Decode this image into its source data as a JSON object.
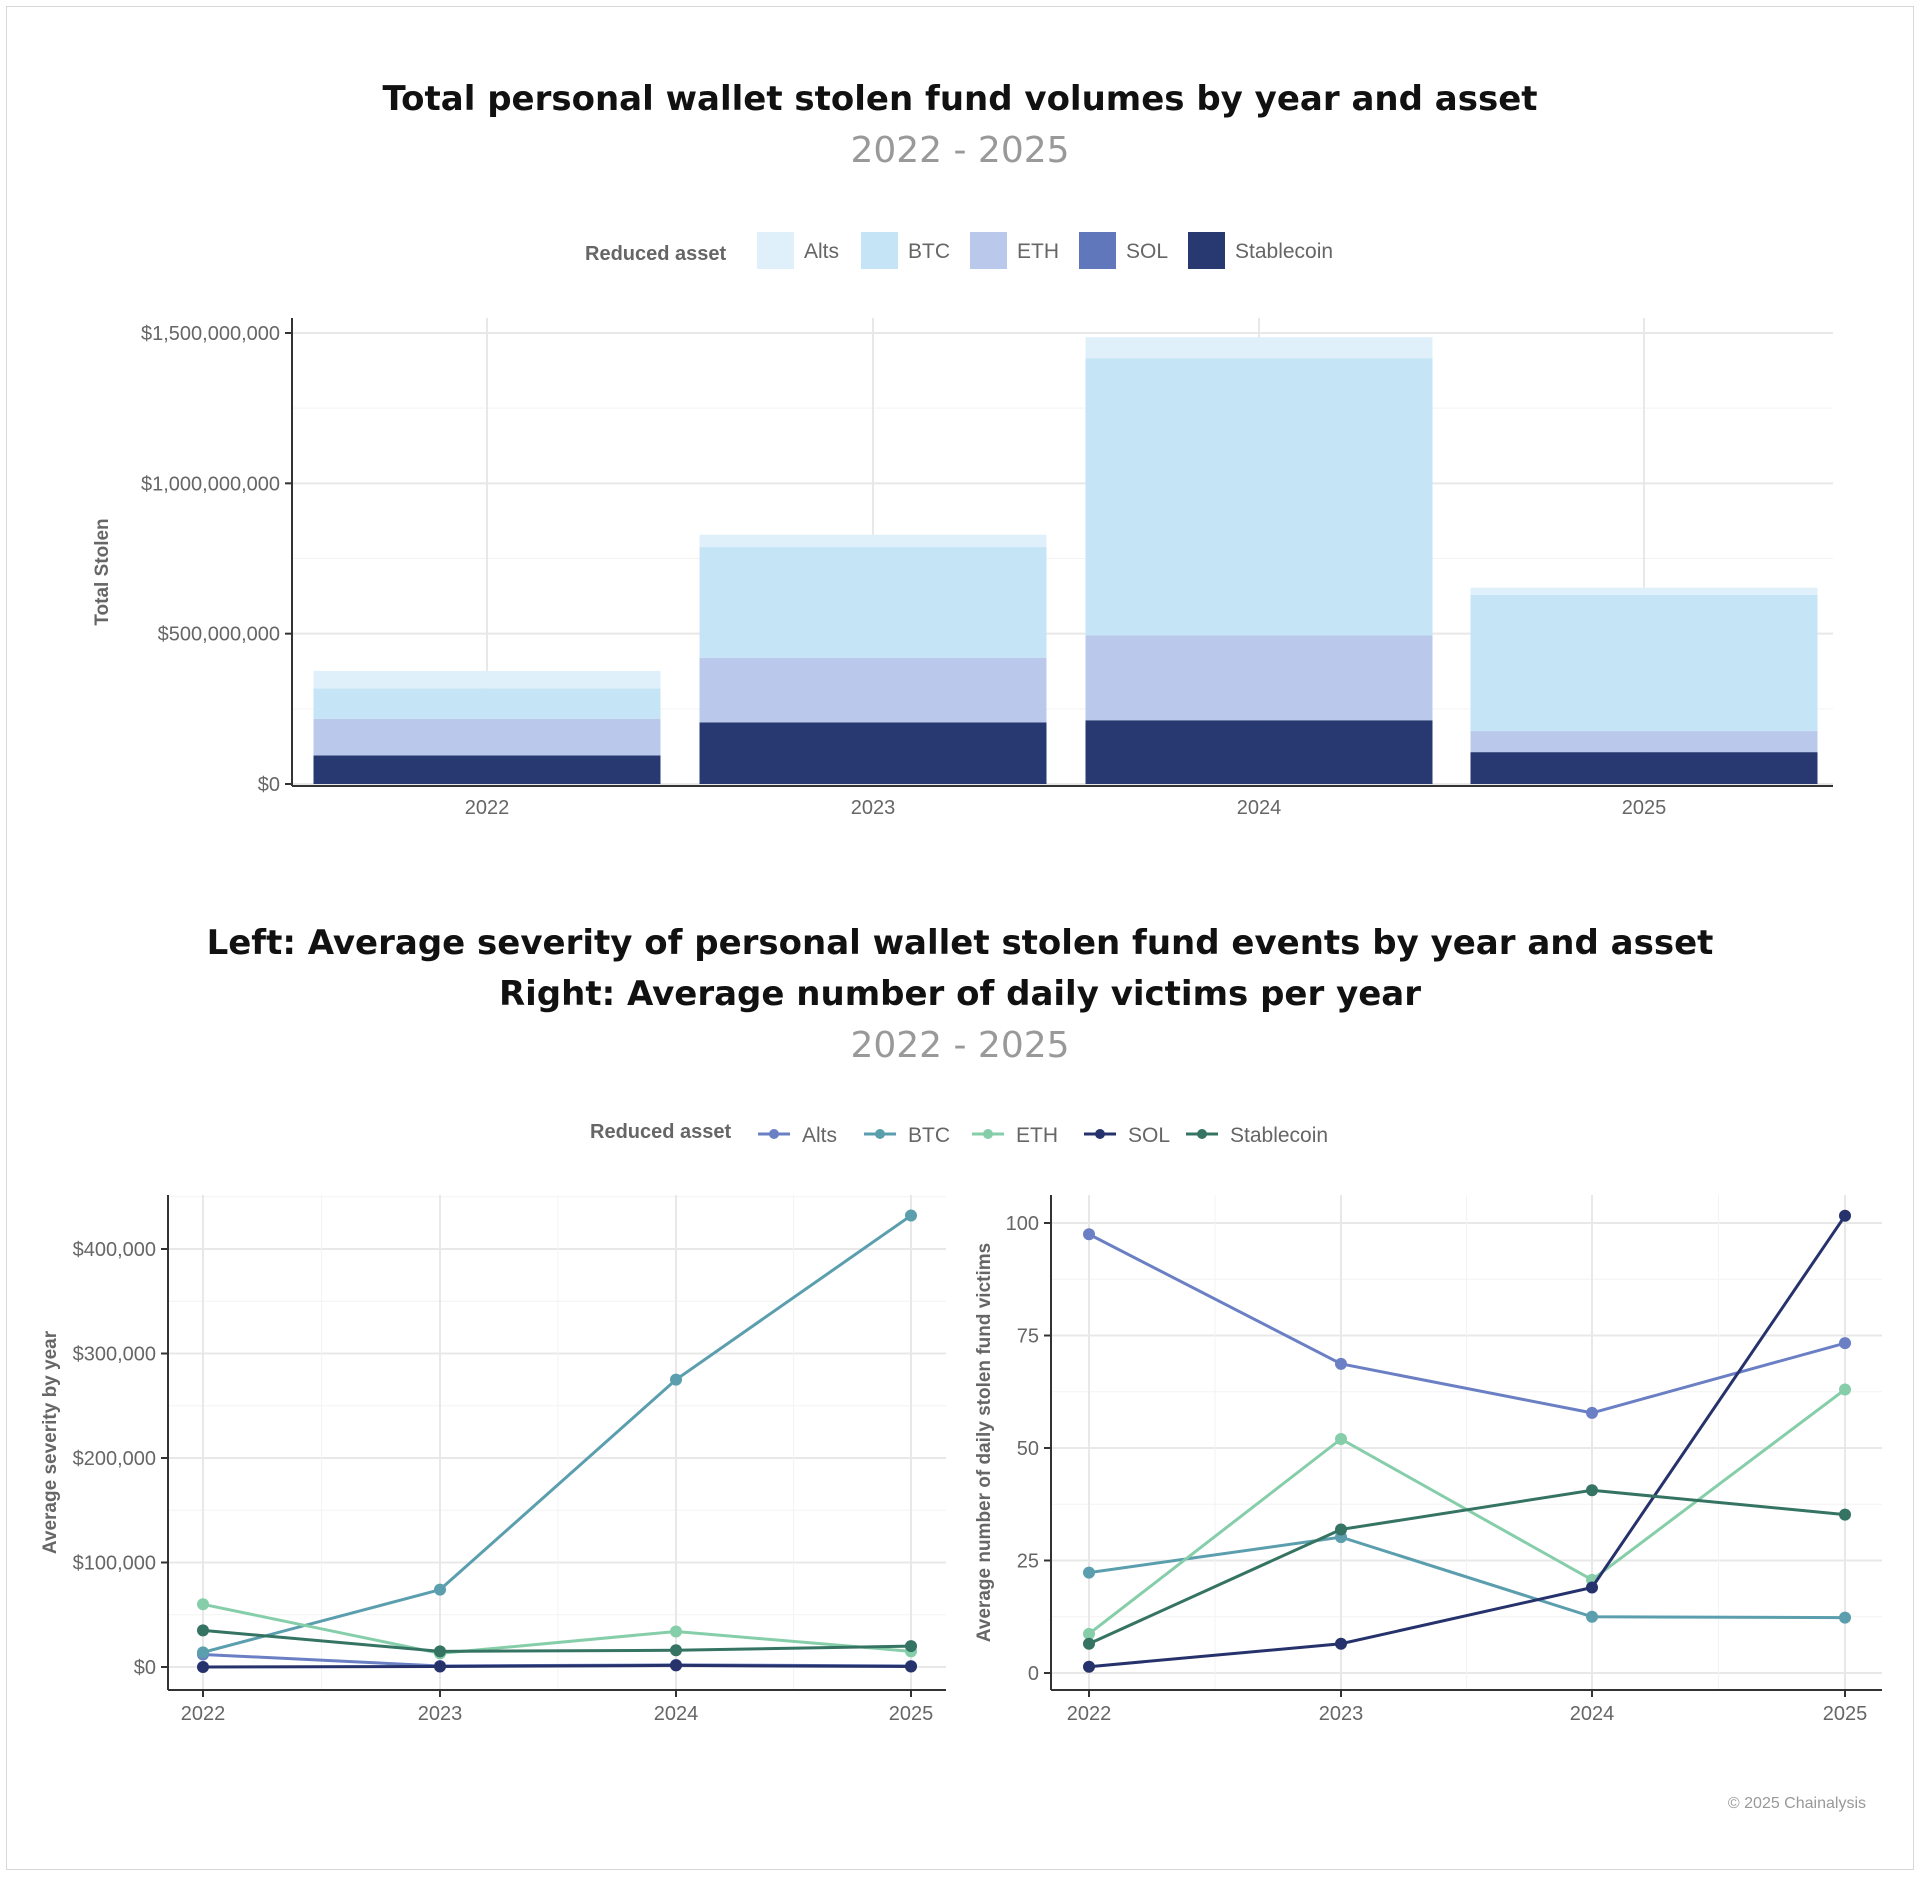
{
  "colors": {
    "Alts": "#dff0fa",
    "BTC": "#c5e5f6",
    "ETH": "#bac8ec",
    "SOL": "#6077bb",
    "Stablecoin": "#283870"
  },
  "line_colors": {
    "Alts": "#6b7fc4",
    "BTC": "#5b9ead",
    "ETH": "#86ceaa",
    "SOL": "#26326b",
    "Stablecoin": "#357362"
  },
  "copyright": "© 2025 Chainalysis",
  "chart_data": [
    {
      "type": "bar",
      "stacked": true,
      "title": "Total personal wallet stolen fund volumes by year and asset",
      "subtitle": "2022 - 2025",
      "legend_title": "Reduced asset",
      "legend_position": "top",
      "xlabel": "",
      "ylabel": "Total Stolen",
      "categories": [
        "2022",
        "2023",
        "2024",
        "2025"
      ],
      "ylim": [
        0,
        1500000000
      ],
      "yticks": [
        0,
        500000000,
        1000000000,
        1500000000
      ],
      "ytick_labels": [
        "$0",
        "$500,000,000",
        "$1,000,000,000",
        "$1,500,000,000"
      ],
      "grid": true,
      "series": [
        {
          "name": "Stablecoin",
          "values": [
            95000000,
            205000000,
            212000000,
            106000000
          ]
        },
        {
          "name": "SOL",
          "values": [
            0,
            0,
            0,
            0
          ]
        },
        {
          "name": "ETH",
          "values": [
            122000000,
            215000000,
            282000000,
            70000000
          ]
        },
        {
          "name": "BTC",
          "values": [
            101000000,
            368000000,
            922000000,
            453000000
          ]
        },
        {
          "name": "Alts",
          "values": [
            58000000,
            41000000,
            70000000,
            24000000
          ]
        }
      ]
    },
    {
      "type": "line",
      "title": "Left: Average severity of personal wallet stolen fund events by year and asset",
      "title2": "Right: Average number of daily victims per year",
      "subtitle": "2022 - 2025",
      "legend_title": "Reduced asset",
      "legend_position": "top",
      "xlabel": "",
      "ylabel": "Average severity by year",
      "x": [
        "2022",
        "2023",
        "2024",
        "2025"
      ],
      "ylim": [
        0,
        450000
      ],
      "yticks": [
        0,
        100000,
        200000,
        300000,
        400000
      ],
      "ytick_labels": [
        "$0",
        "$100,000",
        "$200,000",
        "$300,000",
        "$400,000"
      ],
      "grid": true,
      "series": [
        {
          "name": "Alts",
          "values": [
            12000,
            1000,
            2000,
            1000
          ]
        },
        {
          "name": "BTC",
          "values": [
            14000,
            74000,
            275000,
            432000
          ]
        },
        {
          "name": "ETH",
          "values": [
            60000,
            13000,
            34000,
            15000
          ]
        },
        {
          "name": "SOL",
          "values": [
            0,
            500,
            1500,
            500
          ]
        },
        {
          "name": "Stablecoin",
          "values": [
            35000,
            15000,
            16000,
            20000
          ]
        }
      ]
    },
    {
      "type": "line",
      "xlabel": "",
      "ylabel": "Average number of daily stolen fund victims",
      "x": [
        "2022",
        "2023",
        "2024",
        "2025"
      ],
      "ylim": [
        0,
        105
      ],
      "yticks": [
        0,
        25,
        50,
        75,
        100
      ],
      "ytick_labels": [
        "0",
        "25",
        "50",
        "75",
        "100"
      ],
      "grid": true,
      "series": [
        {
          "name": "Alts",
          "values": [
            97.5,
            68.7,
            57.8,
            73.3
          ]
        },
        {
          "name": "BTC",
          "values": [
            22.3,
            30.2,
            12.5,
            12.3
          ]
        },
        {
          "name": "ETH",
          "values": [
            8.7,
            52,
            20.7,
            63
          ]
        },
        {
          "name": "SOL",
          "values": [
            1.4,
            6.5,
            19,
            101.6
          ]
        },
        {
          "name": "Stablecoin",
          "values": [
            6.5,
            31.9,
            40.6,
            35.2
          ]
        }
      ]
    }
  ]
}
